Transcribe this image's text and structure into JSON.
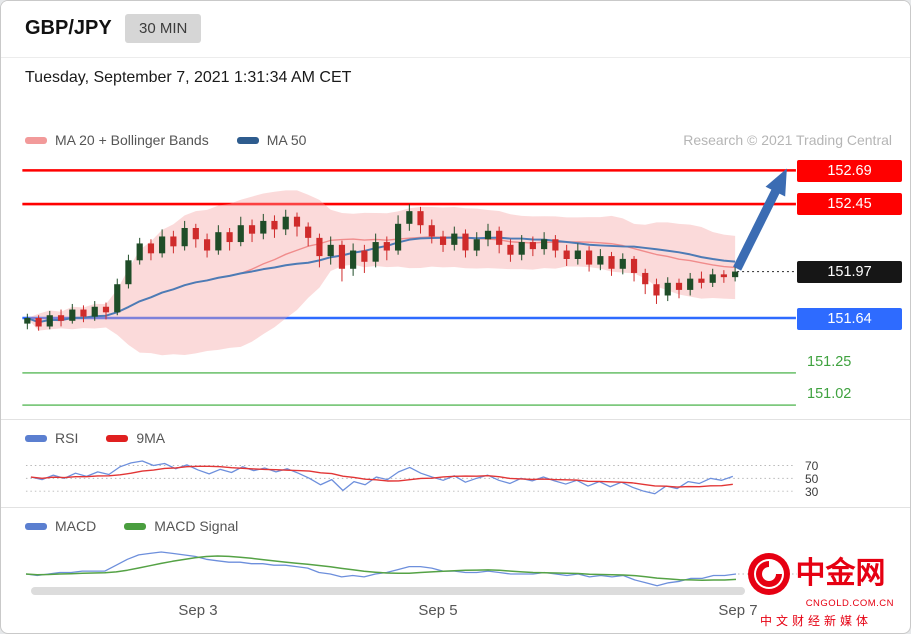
{
  "header": {
    "symbol": "GBP/JPY",
    "timeframe": "30 MIN",
    "datetime": "Tuesday, September 7, 2021 1:31:34 AM CET"
  },
  "main_panel": {
    "legend": [
      {
        "label": "MA 20 + Bollinger Bands"
      },
      {
        "label": "MA 50"
      }
    ],
    "copyright": "Research © 2021 Trading Central",
    "price_labels": {
      "r1": "152.69",
      "r2": "152.45",
      "current": "151.97",
      "s1": "151.64",
      "s2": "151.25",
      "s3": "151.02"
    }
  },
  "rsi_panel": {
    "legend": [
      {
        "label": "RSI"
      },
      {
        "label": "9MA"
      }
    ],
    "gridline_labels": [
      "70",
      "50",
      "30"
    ]
  },
  "macd_panel": {
    "legend": [
      {
        "label": "MACD"
      },
      {
        "label": "MACD Signal"
      }
    ]
  },
  "x_axis": {
    "labels": [
      "Sep 3",
      "Sep 5",
      "Sep 7"
    ]
  },
  "watermark": {
    "name": "中金网",
    "domain": "CNGOLD.COM.CN",
    "tagline": "中文财经新媒体"
  },
  "colors": {
    "resistance": "#ff0000",
    "support_major": "#2e6bff",
    "support_minor": "#7dc87d",
    "support_minor_text": "#3fa23f",
    "last_price_bg": "#161616",
    "candle_up": "#1f4d28",
    "candle_down": "#cf2b2b",
    "ma20": "#f08c8c",
    "ma50": "#4d7bb5",
    "bollinger_fill": "rgba(246,162,162,0.40)",
    "rsi": "#6d8fdc",
    "rsi_ma": "#e23535",
    "macd": "#6d8fdc",
    "macd_signal": "#55a245",
    "arrow": "#3b6cb3",
    "grid_dotted": "#b8b8b8",
    "brand_red": "#e60012"
  },
  "chart_data": [
    {
      "type": "candlestick",
      "title": "GBP/JPY 30 MIN",
      "x_tick_labels": [
        "Sep 3",
        "Sep 5",
        "Sep 7"
      ],
      "ylim": [
        150.95,
        152.85
      ],
      "overlays": [
        "MA 20 + Bollinger Bands",
        "MA 50"
      ],
      "levels": {
        "resistance": [
          152.69,
          152.45
        ],
        "last_price": 151.97,
        "support": [
          151.64,
          151.25,
          151.02
        ]
      },
      "candles_ohlc": [
        [
          151.6,
          151.67,
          151.56,
          151.64
        ],
        [
          151.64,
          151.66,
          151.55,
          151.58
        ],
        [
          151.58,
          151.69,
          151.56,
          151.66
        ],
        [
          151.66,
          151.7,
          151.58,
          151.62
        ],
        [
          151.62,
          151.74,
          151.6,
          151.7
        ],
        [
          151.7,
          151.73,
          151.61,
          151.65
        ],
        [
          151.65,
          151.76,
          151.62,
          151.72
        ],
        [
          151.72,
          151.75,
          151.63,
          151.68
        ],
        [
          151.68,
          151.92,
          151.66,
          151.88
        ],
        [
          151.88,
          152.09,
          151.85,
          152.05
        ],
        [
          152.05,
          152.21,
          152.02,
          152.17
        ],
        [
          152.17,
          152.2,
          152.05,
          152.1
        ],
        [
          152.1,
          152.27,
          152.07,
          152.22
        ],
        [
          152.22,
          152.26,
          152.1,
          152.15
        ],
        [
          152.15,
          152.33,
          152.12,
          152.28
        ],
        [
          152.28,
          152.31,
          152.14,
          152.2
        ],
        [
          152.2,
          152.24,
          152.07,
          152.12
        ],
        [
          152.12,
          152.3,
          152.09,
          152.25
        ],
        [
          152.25,
          152.28,
          152.12,
          152.18
        ],
        [
          152.18,
          152.36,
          152.15,
          152.3
        ],
        [
          152.3,
          152.34,
          152.18,
          152.24
        ],
        [
          152.24,
          152.38,
          152.2,
          152.33
        ],
        [
          152.33,
          152.37,
          152.21,
          152.27
        ],
        [
          152.27,
          152.41,
          152.23,
          152.36
        ],
        [
          152.36,
          152.39,
          152.22,
          152.29
        ],
        [
          152.29,
          152.32,
          152.15,
          152.21
        ],
        [
          152.21,
          152.24,
          152.0,
          152.08
        ],
        [
          152.08,
          152.22,
          152.02,
          152.16
        ],
        [
          152.16,
          152.19,
          151.9,
          151.99
        ],
        [
          151.99,
          152.17,
          151.94,
          152.12
        ],
        [
          152.12,
          152.16,
          151.96,
          152.04
        ],
        [
          152.04,
          152.24,
          152.0,
          152.18
        ],
        [
          152.18,
          152.22,
          152.05,
          152.12
        ],
        [
          152.12,
          152.37,
          152.09,
          152.31
        ],
        [
          152.31,
          152.45,
          152.26,
          152.4
        ],
        [
          152.4,
          152.43,
          152.24,
          152.3
        ],
        [
          152.3,
          152.34,
          152.17,
          152.22
        ],
        [
          152.22,
          152.26,
          152.11,
          152.16
        ],
        [
          152.16,
          152.29,
          152.12,
          152.24
        ],
        [
          152.24,
          152.27,
          152.07,
          152.12
        ],
        [
          152.12,
          152.25,
          152.08,
          152.2
        ],
        [
          152.2,
          152.31,
          152.15,
          152.26
        ],
        [
          152.26,
          152.29,
          152.1,
          152.16
        ],
        [
          152.16,
          152.2,
          152.04,
          152.09
        ],
        [
          152.09,
          152.23,
          152.05,
          152.18
        ],
        [
          152.18,
          152.22,
          152.08,
          152.13
        ],
        [
          152.13,
          152.25,
          152.09,
          152.2
        ],
        [
          152.2,
          152.23,
          152.07,
          152.12
        ],
        [
          152.12,
          152.16,
          152.01,
          152.06
        ],
        [
          152.06,
          152.17,
          152.02,
          152.12
        ],
        [
          152.12,
          152.15,
          151.97,
          152.02
        ],
        [
          152.02,
          152.13,
          151.98,
          152.08
        ],
        [
          152.08,
          152.11,
          151.94,
          151.99
        ],
        [
          151.99,
          152.1,
          151.95,
          152.06
        ],
        [
          152.06,
          152.08,
          151.9,
          151.96
        ],
        [
          151.96,
          151.99,
          151.81,
          151.88
        ],
        [
          151.88,
          151.92,
          151.74,
          151.8
        ],
        [
          151.8,
          151.93,
          151.76,
          151.89
        ],
        [
          151.89,
          151.92,
          151.78,
          151.84
        ],
        [
          151.84,
          151.96,
          151.8,
          151.92
        ],
        [
          151.92,
          151.97,
          151.85,
          151.89
        ],
        [
          151.89,
          151.99,
          151.86,
          151.95
        ],
        [
          151.95,
          151.98,
          151.89,
          151.93
        ],
        [
          151.93,
          152.0,
          151.9,
          151.97
        ]
      ]
    },
    {
      "type": "line",
      "title": "RSI",
      "ylim": [
        0,
        100
      ],
      "gridlines": [
        70,
        50,
        30
      ],
      "series": [
        {
          "name": "RSI",
          "values": [
            52,
            48,
            55,
            50,
            58,
            53,
            60,
            56,
            68,
            74,
            77,
            70,
            73,
            65,
            71,
            63,
            57,
            64,
            59,
            68,
            62,
            66,
            60,
            65,
            58,
            50,
            40,
            48,
            31,
            45,
            40,
            52,
            48,
            60,
            67,
            58,
            52,
            47,
            54,
            44,
            50,
            55,
            47,
            42,
            50,
            46,
            52,
            46,
            41,
            47,
            38,
            45,
            37,
            44,
            36,
            30,
            26,
            38,
            34,
            45,
            42,
            50,
            47,
            53
          ]
        },
        {
          "name": "9MA",
          "derived": "9-period moving average of RSI"
        }
      ]
    },
    {
      "type": "line",
      "title": "MACD",
      "gridlines": [
        0
      ],
      "series": [
        {
          "name": "MACD",
          "values": [
            0.0,
            -0.01,
            0.0,
            0.01,
            0.01,
            0.02,
            0.02,
            0.02,
            0.06,
            0.1,
            0.13,
            0.14,
            0.15,
            0.14,
            0.13,
            0.12,
            0.1,
            0.09,
            0.08,
            0.08,
            0.07,
            0.07,
            0.06,
            0.06,
            0.05,
            0.04,
            0.01,
            0.0,
            -0.02,
            -0.01,
            -0.02,
            0.0,
            0.01,
            0.03,
            0.05,
            0.05,
            0.04,
            0.02,
            0.02,
            0.01,
            0.01,
            0.02,
            0.01,
            0.0,
            0.0,
            0.0,
            0.01,
            0.0,
            -0.01,
            0.0,
            -0.02,
            -0.01,
            -0.02,
            -0.01,
            -0.04,
            -0.06,
            -0.08,
            -0.06,
            -0.05,
            -0.03,
            -0.03,
            -0.01,
            -0.01,
            0.0
          ]
        },
        {
          "name": "MACD Signal",
          "derived": "9-period moving average of MACD"
        }
      ]
    }
  ]
}
